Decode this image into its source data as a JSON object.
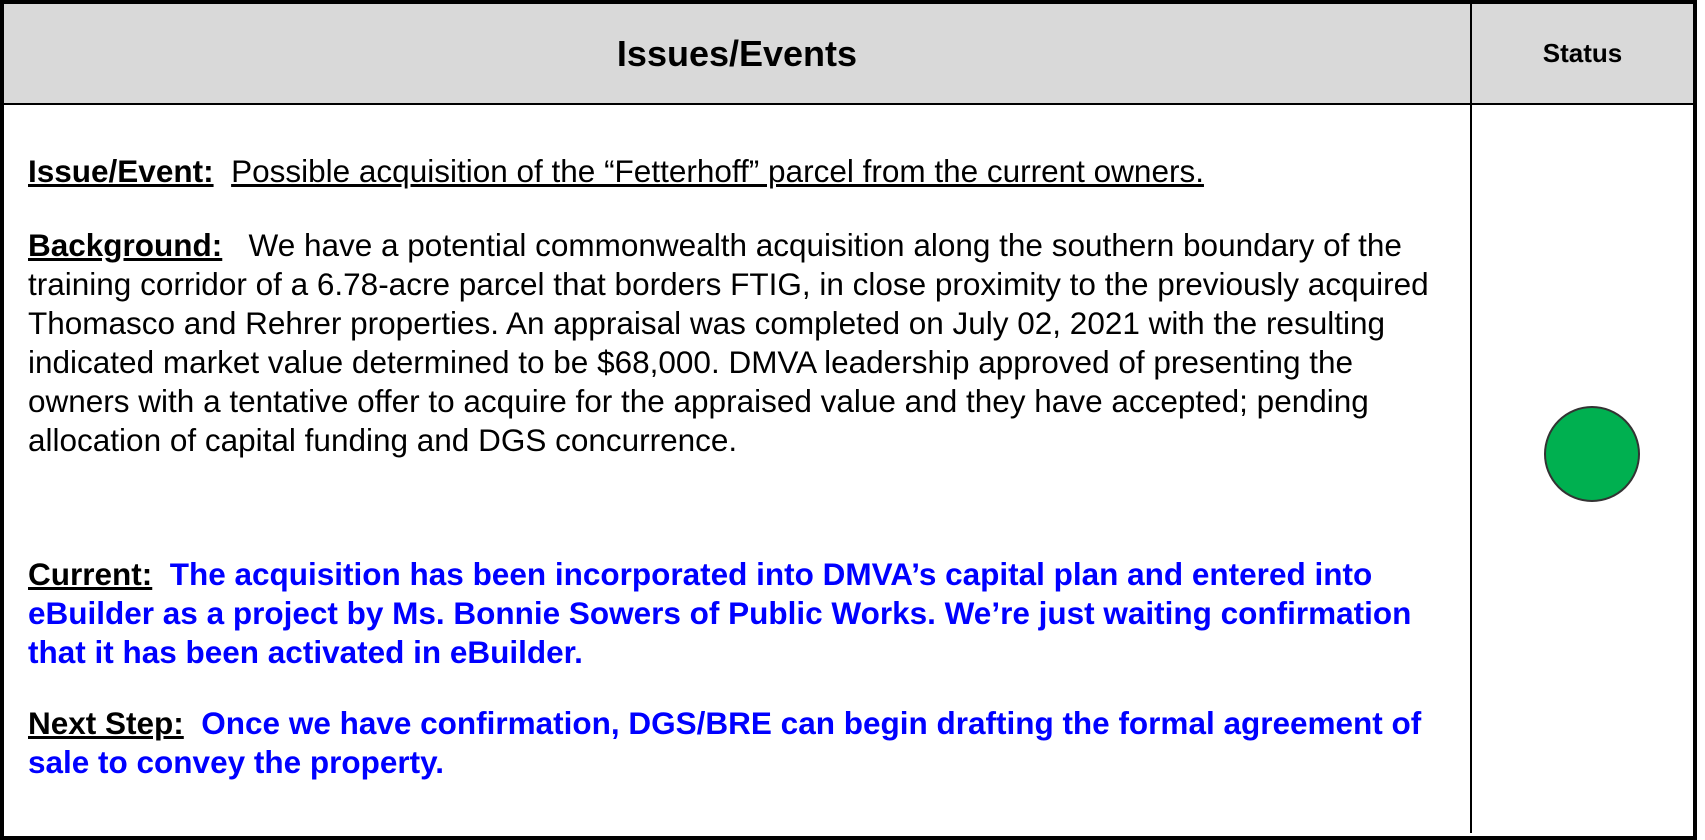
{
  "header": {
    "issues": "Issues/Events",
    "status": "Status"
  },
  "sections": [
    {
      "label": "Issue/Event:",
      "text": "Possible acquisition of the “Fetterhoff” parcel from the current owners."
    },
    {
      "label": "Background:",
      "text": "We have a potential commonwealth acquisition along the southern boundary of the training corridor of a 6.78-acre parcel that borders FTIG, in close proximity to the previously acquired Thomasco and Rehrer properties.  An appraisal was completed on July 02, 2021 with the resulting indicated market value determined to be $68,000.  DMVA leadership approved of presenting the owners with a tentative offer to acquire for the appraised value and they have accepted; pending allocation of capital funding and DGS concurrence."
    },
    {
      "label": "Current:",
      "text": "The acquisition has been incorporated into DMVA’s capital plan and entered into eBuilder as a project by Ms. Bonnie Sowers of Public Works.  We’re just waiting confirmation that it has been activated in eBuilder."
    },
    {
      "label": "Next Step:",
      "text": "Once we have confirmation, DGS/BRE can begin drafting the formal agreement of sale to convey the property."
    }
  ],
  "status_color": "#00b050"
}
